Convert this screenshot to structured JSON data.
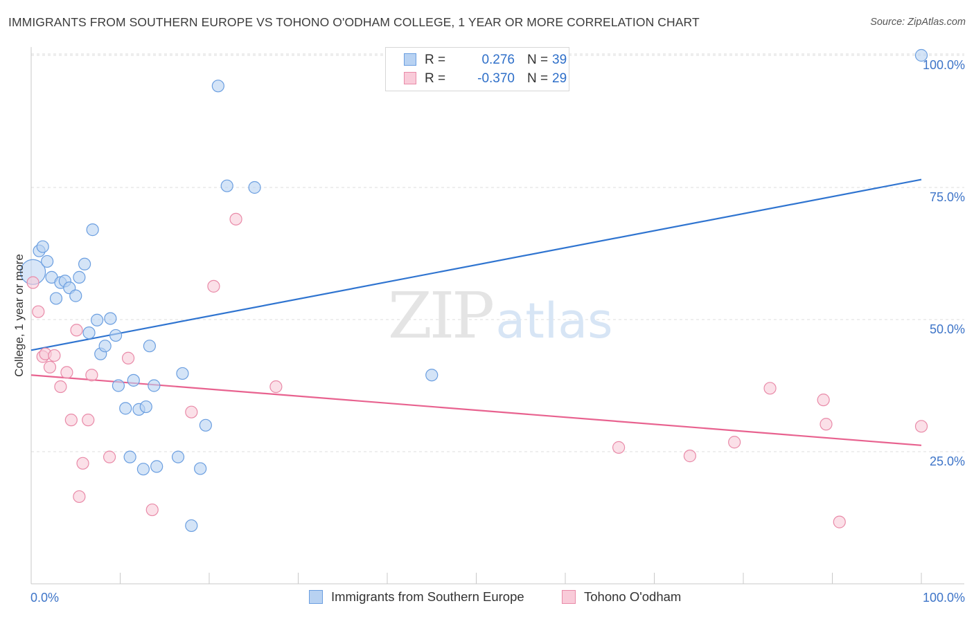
{
  "header": {
    "title": "IMMIGRANTS FROM SOUTHERN EUROPE VS TOHONO O'ODHAM COLLEGE, 1 YEAR OR MORE CORRELATION CHART",
    "source": "Source: ZipAtlas.com"
  },
  "watermark": {
    "zip": "ZIP",
    "atlas": "atlas"
  },
  "legend": {
    "series1": {
      "r_label": "R =",
      "r_value": "0.276",
      "n_label": "N =",
      "n_value": "39"
    },
    "series2": {
      "r_label": "R =",
      "r_value": "-0.370",
      "n_label": "N =",
      "n_value": "29"
    }
  },
  "bottom_legend": {
    "series1": "Immigrants from Southern Europe",
    "series2": "Tohono O'odham"
  },
  "colors": {
    "blue_fill": "#b8d2f2",
    "blue_stroke": "#6a9ee0",
    "blue_line": "#2f74d0",
    "pink_fill": "#f9cbd9",
    "pink_stroke": "#e98aa8",
    "pink_line": "#e8628f",
    "tick_label": "#3d74c8",
    "grid": "#dcdcdc"
  },
  "chart_data": {
    "type": "scatter",
    "title": "IMMIGRANTS FROM SOUTHERN EUROPE VS TOHONO O'ODHAM COLLEGE, 1 YEAR OR MORE CORRELATION CHART",
    "xlabel": "",
    "ylabel": "College, 1 year or more",
    "xlim": [
      0,
      100
    ],
    "ylim": [
      0,
      101.6
    ],
    "x_tick_labels": [
      "0.0%",
      "100.0%"
    ],
    "y_ticks": [
      25,
      50,
      75,
      100
    ],
    "y_tick_labels": [
      "25.0%",
      "50.0%",
      "75.0%",
      "100.0%"
    ],
    "grid": true,
    "series": [
      {
        "name": "Immigrants from Southern Europe",
        "color": "#6a9ee0",
        "r": 0.276,
        "n": 39,
        "points": [
          [
            0.2,
            59.0
          ],
          [
            0.9,
            63.0
          ],
          [
            1.3,
            63.8
          ],
          [
            1.8,
            61.0
          ],
          [
            2.3,
            58.0
          ],
          [
            2.8,
            54.0
          ],
          [
            3.3,
            57.0
          ],
          [
            3.8,
            57.3
          ],
          [
            4.3,
            56.0
          ],
          [
            5.0,
            54.5
          ],
          [
            5.4,
            58.0
          ],
          [
            6.0,
            60.5
          ],
          [
            6.5,
            47.5
          ],
          [
            6.9,
            67.0
          ],
          [
            7.4,
            49.9
          ],
          [
            7.8,
            43.5
          ],
          [
            8.3,
            45.0
          ],
          [
            8.9,
            50.2
          ],
          [
            9.5,
            47.0
          ],
          [
            9.8,
            37.5
          ],
          [
            10.6,
            33.2
          ],
          [
            11.1,
            24.0
          ],
          [
            11.5,
            38.5
          ],
          [
            12.1,
            33.0
          ],
          [
            12.6,
            21.7
          ],
          [
            12.9,
            33.5
          ],
          [
            13.3,
            45.0
          ],
          [
            13.8,
            37.5
          ],
          [
            14.1,
            22.2
          ],
          [
            16.5,
            24.0
          ],
          [
            17.0,
            39.8
          ],
          [
            18.0,
            11.0
          ],
          [
            19.0,
            21.8
          ],
          [
            19.6,
            30.0
          ],
          [
            21.0,
            94.2
          ],
          [
            22.0,
            75.3
          ],
          [
            25.1,
            75.0
          ],
          [
            45.0,
            39.5
          ],
          [
            100.0,
            100.0
          ]
        ],
        "trendline": {
          "x": [
            0,
            100
          ],
          "y": [
            44.2,
            76.5
          ]
        }
      },
      {
        "name": "Tohono O'odham",
        "color": "#e98aa8",
        "r": -0.37,
        "n": 29,
        "points": [
          [
            0.2,
            57.0
          ],
          [
            0.8,
            51.5
          ],
          [
            1.3,
            43.0
          ],
          [
            1.6,
            43.5
          ],
          [
            2.1,
            41.0
          ],
          [
            2.6,
            43.2
          ],
          [
            3.3,
            37.3
          ],
          [
            4.0,
            40.0
          ],
          [
            4.5,
            31.0
          ],
          [
            5.1,
            48.0
          ],
          [
            5.4,
            16.5
          ],
          [
            5.8,
            22.8
          ],
          [
            6.4,
            31.0
          ],
          [
            6.8,
            39.5
          ],
          [
            8.8,
            24.0
          ],
          [
            10.9,
            42.7
          ],
          [
            13.6,
            14.0
          ],
          [
            18.0,
            32.5
          ],
          [
            20.5,
            56.3
          ],
          [
            23.0,
            69.0
          ],
          [
            27.5,
            37.3
          ],
          [
            66.0,
            25.8
          ],
          [
            74.0,
            24.2
          ],
          [
            79.0,
            26.8
          ],
          [
            83.0,
            37.0
          ],
          [
            89.0,
            34.8
          ],
          [
            89.3,
            30.2
          ],
          [
            90.8,
            11.7
          ],
          [
            100.0,
            29.8
          ]
        ],
        "trendline": {
          "x": [
            0,
            100
          ],
          "y": [
            39.5,
            26.2
          ]
        }
      }
    ]
  }
}
